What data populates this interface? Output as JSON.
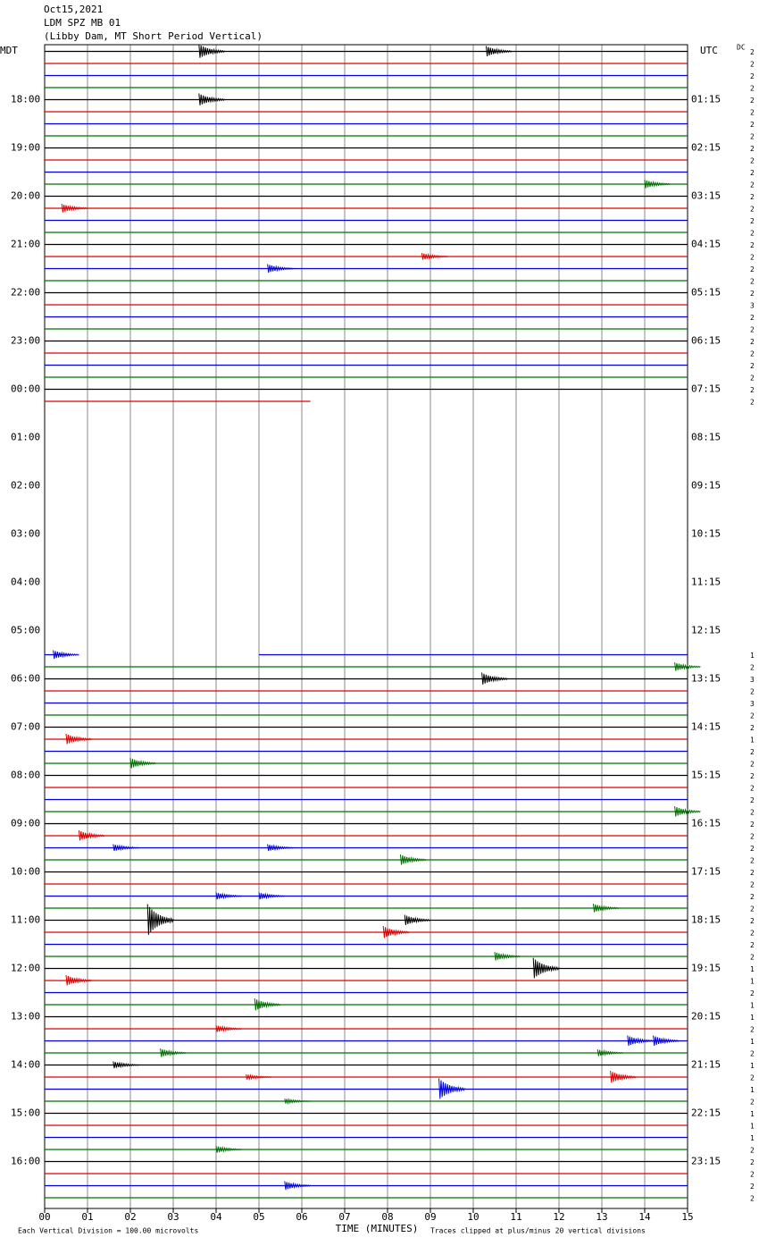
{
  "chart_data": {
    "type": "helicorder",
    "title": "Oct15,2021",
    "subtitle": "LDM SPZ MB 01",
    "description": "(Libby Dam, MT Short Period Vertical)",
    "left_zone": "MDT",
    "right_zone": "UTC",
    "dc_label": "DC",
    "x_label": "TIME (MINUTES)",
    "footer_left": "Each Vertical Division =  100.00 microvolts",
    "footer_right": "Traces clipped at plus/minus 20 vertical divisions",
    "xlim": [
      0,
      15
    ],
    "xticks": [
      {
        "value": 0,
        "label": "00"
      },
      {
        "value": 1,
        "label": "01"
      },
      {
        "value": 2,
        "label": "02"
      },
      {
        "value": 3,
        "label": "03"
      },
      {
        "value": 4,
        "label": "04"
      },
      {
        "value": 5,
        "label": "05"
      },
      {
        "value": 6,
        "label": "06"
      },
      {
        "value": 7,
        "label": "07"
      },
      {
        "value": 8,
        "label": "08"
      },
      {
        "value": 9,
        "label": "09"
      },
      {
        "value": 10,
        "label": "10"
      },
      {
        "value": 11,
        "label": "11"
      },
      {
        "value": 12,
        "label": "12"
      },
      {
        "value": 13,
        "label": "13"
      },
      {
        "value": 14,
        "label": "14"
      },
      {
        "value": 15,
        "label": "15"
      }
    ],
    "row_count": 96,
    "rows_per_hour": 4,
    "colors": [
      "#000000",
      "#e00000",
      "#0000e0",
      "#007000"
    ],
    "left_labels": [
      "18:00",
      "19:00",
      "20:00",
      "21:00",
      "22:00",
      "23:00",
      "00:00",
      "01:00",
      "02:00",
      "03:00",
      "04:00",
      "05:00",
      "06:00",
      "07:00",
      "08:00",
      "09:00",
      "10:00",
      "11:00",
      "12:00",
      "13:00",
      "14:00",
      "15:00",
      "16:00"
    ],
    "right_labels": [
      "01:15",
      "02:15",
      "03:15",
      "04:15",
      "05:15",
      "06:15",
      "07:15",
      "08:15",
      "09:15",
      "10:15",
      "11:15",
      "12:15",
      "13:15",
      "14:15",
      "15:15",
      "16:15",
      "17:15",
      "18:15",
      "19:15",
      "20:15",
      "21:15",
      "22:15",
      "23:15"
    ],
    "dc": [
      2,
      2,
      2,
      2,
      2,
      2,
      2,
      2,
      2,
      2,
      2,
      2,
      2,
      2,
      2,
      2,
      2,
      2,
      2,
      2,
      2,
      3,
      2,
      2,
      2,
      2,
      2,
      2,
      2,
      2,
      null,
      null,
      null,
      null,
      null,
      null,
      null,
      null,
      null,
      null,
      null,
      null,
      null,
      null,
      null,
      null,
      null,
      null,
      null,
      null,
      1,
      2,
      3,
      2,
      3,
      2,
      2,
      1,
      2,
      2,
      2,
      2,
      2,
      2,
      2,
      2,
      2,
      2,
      2,
      2,
      2,
      2,
      2,
      2,
      2,
      2,
      1,
      1,
      2,
      1,
      1,
      2,
      1,
      2,
      1,
      2,
      1,
      2,
      1,
      1,
      1,
      2,
      2,
      2,
      2,
      2
    ],
    "segments": [
      [
        0,
        0,
        15
      ],
      [
        1,
        0,
        15
      ],
      [
        2,
        0,
        15
      ],
      [
        3,
        0,
        15
      ],
      [
        4,
        0,
        15
      ],
      [
        5,
        0,
        15
      ],
      [
        6,
        0,
        15
      ],
      [
        7,
        0,
        15
      ],
      [
        8,
        0,
        15
      ],
      [
        9,
        0,
        15
      ],
      [
        10,
        0,
        15
      ],
      [
        11,
        0,
        15
      ],
      [
        12,
        0,
        15
      ],
      [
        13,
        0,
        15
      ],
      [
        14,
        0,
        15
      ],
      [
        15,
        0,
        15
      ],
      [
        16,
        0,
        15
      ],
      [
        17,
        0,
        15
      ],
      [
        18,
        0,
        15
      ],
      [
        19,
        0,
        15
      ],
      [
        20,
        0,
        15
      ],
      [
        21,
        0,
        15
      ],
      [
        22,
        0,
        15
      ],
      [
        23,
        0,
        15
      ],
      [
        24,
        0,
        15
      ],
      [
        25,
        0,
        15
      ],
      [
        26,
        0,
        15
      ],
      [
        27,
        0,
        15
      ],
      [
        28,
        0,
        15
      ],
      [
        29,
        0,
        6.2
      ],
      [
        50,
        0,
        0.6
      ],
      [
        50,
        5,
        15
      ],
      [
        51,
        0,
        15
      ],
      [
        52,
        0,
        15
      ],
      [
        53,
        0,
        15
      ],
      [
        54,
        0,
        15
      ],
      [
        55,
        0,
        15
      ],
      [
        56,
        0,
        15
      ],
      [
        57,
        0,
        15
      ],
      [
        58,
        0,
        15
      ],
      [
        59,
        0,
        15
      ],
      [
        60,
        0,
        15
      ],
      [
        61,
        0,
        15
      ],
      [
        62,
        0,
        15
      ],
      [
        63,
        0,
        15
      ],
      [
        64,
        0,
        15
      ],
      [
        65,
        0,
        15
      ],
      [
        66,
        0,
        15
      ],
      [
        67,
        0,
        15
      ],
      [
        68,
        0,
        15
      ],
      [
        69,
        0,
        15
      ],
      [
        70,
        0,
        15
      ],
      [
        71,
        0,
        15
      ],
      [
        72,
        0,
        15
      ],
      [
        73,
        0,
        15
      ],
      [
        74,
        0,
        15
      ],
      [
        75,
        0,
        15
      ],
      [
        76,
        0,
        15
      ],
      [
        77,
        0,
        15
      ],
      [
        78,
        0,
        15
      ],
      [
        79,
        0,
        15
      ],
      [
        80,
        0,
        15
      ],
      [
        81,
        0,
        15
      ],
      [
        82,
        0,
        15
      ],
      [
        83,
        0,
        15
      ],
      [
        84,
        0,
        15
      ],
      [
        85,
        0,
        15
      ],
      [
        86,
        0,
        15
      ],
      [
        87,
        0,
        15
      ],
      [
        88,
        0,
        15
      ],
      [
        89,
        0,
        15
      ],
      [
        90,
        0,
        15
      ],
      [
        91,
        0,
        15
      ],
      [
        92,
        0,
        15
      ],
      [
        93,
        0,
        15
      ],
      [
        94,
        0,
        15
      ],
      [
        95,
        0,
        15
      ]
    ],
    "events": [
      [
        0,
        3.6,
        8
      ],
      [
        0,
        10.3,
        6
      ],
      [
        4,
        3.6,
        7
      ],
      [
        11,
        14,
        5
      ],
      [
        13,
        0.4,
        5
      ],
      [
        17,
        8.8,
        4
      ],
      [
        18,
        5.2,
        5
      ],
      [
        50,
        0.2,
        5
      ],
      [
        51,
        14.7,
        5
      ],
      [
        52,
        10.2,
        7
      ],
      [
        57,
        0.5,
        6
      ],
      [
        59,
        2,
        6
      ],
      [
        63,
        14.7,
        6
      ],
      [
        65,
        0.8,
        6
      ],
      [
        66,
        1.6,
        4
      ],
      [
        66,
        5.2,
        4
      ],
      [
        67,
        8.3,
        6
      ],
      [
        70,
        4,
        4
      ],
      [
        70,
        5,
        4
      ],
      [
        71,
        12.8,
        5
      ],
      [
        72,
        2.4,
        18
      ],
      [
        72,
        8.4,
        6
      ],
      [
        73,
        7.9,
        7
      ],
      [
        75,
        10.5,
        5
      ],
      [
        76,
        11.4,
        12
      ],
      [
        77,
        0.5,
        6
      ],
      [
        79,
        4.9,
        7
      ],
      [
        81,
        4,
        4
      ],
      [
        82,
        13.6,
        6
      ],
      [
        82,
        14.2,
        6
      ],
      [
        83,
        2.7,
        5
      ],
      [
        83,
        12.9,
        4
      ],
      [
        84,
        1.6,
        4
      ],
      [
        85,
        13.2,
        7
      ],
      [
        85,
        4.7,
        3
      ],
      [
        86,
        9.2,
        12
      ],
      [
        87,
        5.6,
        3
      ],
      [
        91,
        4,
        4
      ],
      [
        94,
        5.6,
        5
      ]
    ]
  }
}
